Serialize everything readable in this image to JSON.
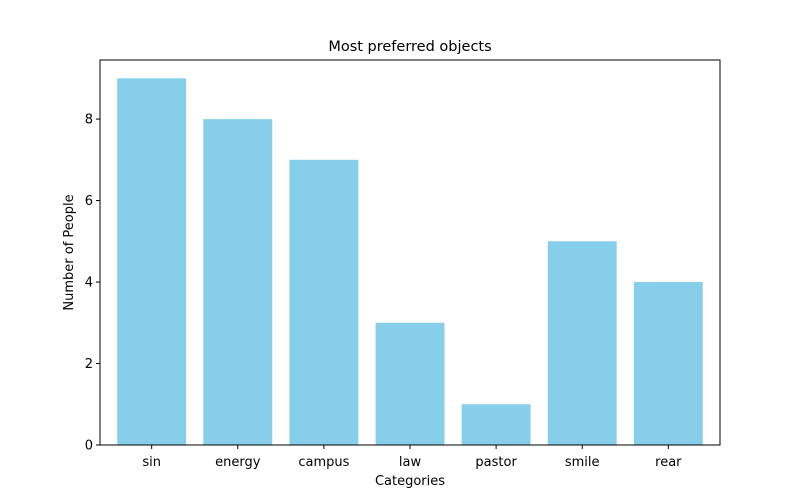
{
  "chart_data": {
    "type": "bar",
    "title": "Most preferred objects",
    "xlabel": "Categories",
    "ylabel": "Number of People",
    "categories": [
      "sin",
      "energy",
      "campus",
      "law",
      "pastor",
      "smile",
      "rear"
    ],
    "values": [
      9,
      8,
      7,
      3,
      1,
      5,
      4
    ],
    "ylim": [
      0,
      9.45
    ],
    "yticks": [
      0,
      2,
      4,
      6,
      8
    ],
    "bar_color": "#87ceeb",
    "grid": false,
    "legend": "none"
  }
}
